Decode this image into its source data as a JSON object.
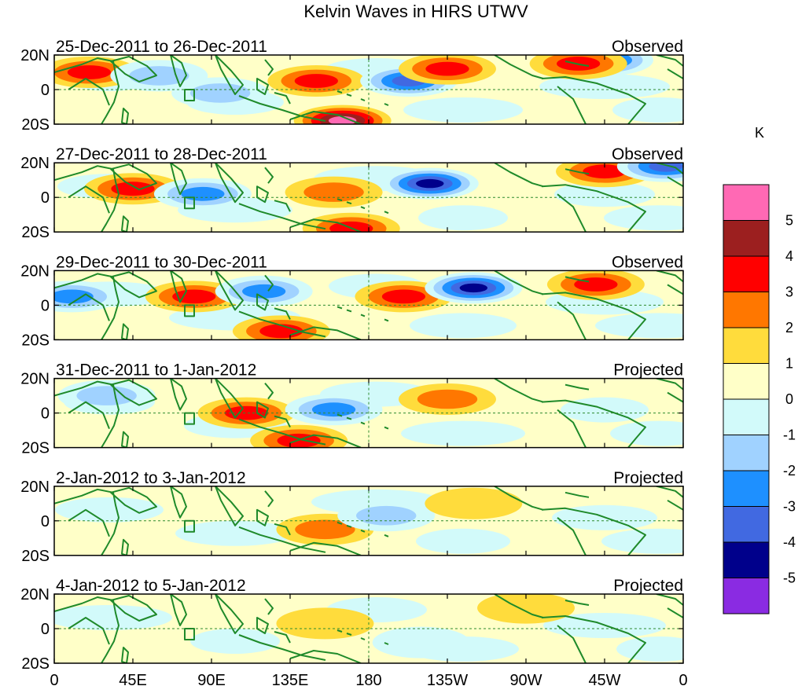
{
  "chart_data": {
    "type": "contour-map",
    "title": "Kelvin Waves in HIRS UTWV",
    "xlabel": "",
    "ylabel": "",
    "x_ticks": [
      "0",
      "45E",
      "90E",
      "135E",
      "180",
      "135W",
      "90W",
      "45W",
      "0"
    ],
    "y_ticks": [
      "20N",
      "0",
      "20S"
    ],
    "lat_range": [
      -20,
      20
    ],
    "lon_range": [
      0,
      360
    ],
    "reference_lines": [
      "equator",
      "180"
    ],
    "panels": [
      {
        "date_range": "25-Dec-2011 to 26-Dec-2011",
        "status": "Observed",
        "features": [
          {
            "lon": 20,
            "lat": 10,
            "value": 3
          },
          {
            "lon": 60,
            "lat": 8,
            "value": -2
          },
          {
            "lon": 95,
            "lat": -2,
            "value": -2
          },
          {
            "lon": 150,
            "lat": 5,
            "value": 3
          },
          {
            "lon": 165,
            "lat": -18,
            "value": 5
          },
          {
            "lon": 203,
            "lat": 5,
            "value": -4
          },
          {
            "lon": 225,
            "lat": 12,
            "value": 3
          },
          {
            "lon": 315,
            "lat": 17,
            "value": -4
          },
          {
            "lon": 300,
            "lat": 15,
            "value": 3
          }
        ]
      },
      {
        "date_range": "27-Dec-2011 to 28-Dec-2011",
        "status": "Observed",
        "features": [
          {
            "lon": 45,
            "lat": 5,
            "value": 3
          },
          {
            "lon": 85,
            "lat": 2,
            "value": -3
          },
          {
            "lon": 160,
            "lat": 3,
            "value": 2
          },
          {
            "lon": 215,
            "lat": 8,
            "value": -5
          },
          {
            "lon": 170,
            "lat": -18,
            "value": 3
          },
          {
            "lon": 315,
            "lat": 15,
            "value": 3
          },
          {
            "lon": 350,
            "lat": 18,
            "value": -4
          }
        ]
      },
      {
        "date_range": "29-Dec-2011 to 30-Dec-2011",
        "status": "Observed",
        "features": [
          {
            "lon": 10,
            "lat": 5,
            "value": -3
          },
          {
            "lon": 80,
            "lat": 5,
            "value": 3
          },
          {
            "lon": 120,
            "lat": 8,
            "value": -3
          },
          {
            "lon": 200,
            "lat": 5,
            "value": 3
          },
          {
            "lon": 240,
            "lat": 10,
            "value": -5
          },
          {
            "lon": 310,
            "lat": 12,
            "value": 3
          },
          {
            "lon": 130,
            "lat": -15,
            "value": 3
          }
        ]
      },
      {
        "date_range": "31-Dec-2011 to 1-Jan-2012",
        "status": "Projected",
        "features": [
          {
            "lon": 30,
            "lat": 10,
            "value": -2
          },
          {
            "lon": 110,
            "lat": 0,
            "value": 3
          },
          {
            "lon": 160,
            "lat": 2,
            "value": -3
          },
          {
            "lon": 225,
            "lat": 8,
            "value": 2
          },
          {
            "lon": 140,
            "lat": -16,
            "value": 3
          }
        ]
      },
      {
        "date_range": "2-Jan-2012 to 3-Jan-2012",
        "status": "Projected",
        "features": [
          {
            "lon": 155,
            "lat": -5,
            "value": 2
          },
          {
            "lon": 190,
            "lat": 3,
            "value": -2
          },
          {
            "lon": 240,
            "lat": 10,
            "value": 1
          }
        ]
      },
      {
        "date_range": "4-Jan-2012 to 5-Jan-2012",
        "status": "Projected",
        "features": [
          {
            "lon": 155,
            "lat": 3,
            "value": 1
          },
          {
            "lon": 270,
            "lat": 12,
            "value": 1
          },
          {
            "lon": 210,
            "lat": -8,
            "value": -1
          }
        ]
      }
    ],
    "colorbar": {
      "unit": "K",
      "labels": [
        "5",
        "4",
        "3",
        "2",
        "1",
        "0",
        "-1",
        "-2",
        "-3",
        "-4",
        "-5"
      ],
      "bins": [
        {
          "label": "> 5",
          "color": "#ff69b4"
        },
        {
          "label": "4 to 5",
          "color": "#9c1f1f"
        },
        {
          "label": "3 to 4",
          "color": "#ff0000"
        },
        {
          "label": "2 to 3",
          "color": "#ff7700"
        },
        {
          "label": "1 to 2",
          "color": "#ffdc3c"
        },
        {
          "label": "0 to 1",
          "color": "#ffffc8"
        },
        {
          "label": "-1 to 0",
          "color": "#d2fafa"
        },
        {
          "label": "-2 to -1",
          "color": "#a0d2ff"
        },
        {
          "label": "-3 to -2",
          "color": "#1e90ff"
        },
        {
          "label": "-4 to -3",
          "color": "#4169e1"
        },
        {
          "label": "-5 to -4",
          "color": "#00008b"
        },
        {
          "label": "< -5",
          "color": "#8a2be2"
        }
      ]
    }
  }
}
